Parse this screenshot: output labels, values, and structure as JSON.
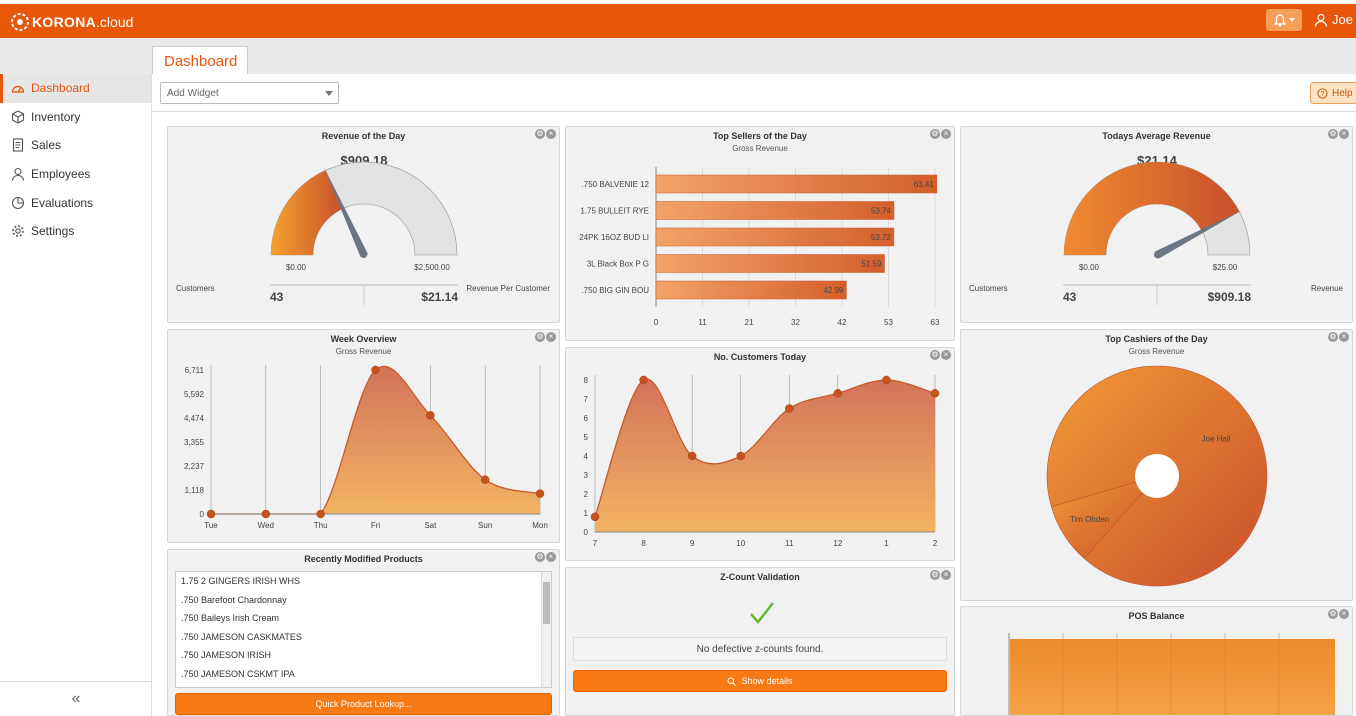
{
  "app": {
    "logo_brand": "KORONA",
    "logo_suffix": ".cloud",
    "user_name": "Joe",
    "accent": "#e8560a"
  },
  "sidebar": {
    "items": [
      {
        "label": "Dashboard",
        "icon": "dashboard-icon"
      },
      {
        "label": "Inventory",
        "icon": "box-icon"
      },
      {
        "label": "Sales",
        "icon": "receipt-icon"
      },
      {
        "label": "Employees",
        "icon": "person-icon"
      },
      {
        "label": "Evaluations",
        "icon": "pie-icon"
      },
      {
        "label": "Settings",
        "icon": "gear-icon"
      }
    ],
    "collapse_icon": "double-chevron-left-icon"
  },
  "tabs": {
    "active": "Dashboard"
  },
  "toolbar": {
    "add_widget_placeholder": "Add Widget",
    "help_label": "Help"
  },
  "widgets": {
    "revenue_day": {
      "title": "Revenue of the Day",
      "value": "$909.18",
      "min_label": "$0.00",
      "max_label": "$2,500.00",
      "left_label": "Customers",
      "right_label": "Revenue Per Customer",
      "left_value": "43",
      "right_value": "$21.14",
      "gauge_value": 909.18,
      "gauge_max": 2500
    },
    "top_sellers": {
      "title": "Top Sellers of the Day",
      "subtitle": "Gross Revenue"
    },
    "avg_revenue": {
      "title": "Todays Average Revenue",
      "value": "$21.14",
      "min_label": "$0.00",
      "max_label": "$25.00",
      "left_label": "Customers",
      "right_label": "Revenue",
      "left_value": "43",
      "right_value": "$909.18",
      "gauge_value": 21.14,
      "gauge_max": 25
    },
    "week_overview": {
      "title": "Week Overview",
      "subtitle": "Gross Revenue"
    },
    "customers_today": {
      "title": "No. Customers Today"
    },
    "top_cashiers": {
      "title": "Top Cashiers of the Day",
      "subtitle": "Gross Revenue"
    },
    "recent_products": {
      "title": "Recently Modified Products",
      "items": [
        "1.75 2 GINGERS IRISH WHS",
        ".750 Barefoot Chardonnay",
        ".750 Baileys Irish Cream",
        ".750 JAMESON CASKMATES",
        ".750 JAMESON IRISH",
        ".750 JAMESON CSKMT IPA"
      ],
      "button_label": "Quick Product Lookup..."
    },
    "zcount": {
      "title": "Z-Count Validation",
      "message": "No defective z-counts found.",
      "button_label": "Show details"
    },
    "pos_balance": {
      "title": "POS Balance"
    }
  },
  "chart_data": [
    {
      "type": "bar",
      "title": "Top Sellers of the Day",
      "subtitle": "Gross Revenue",
      "orientation": "horizontal",
      "categories": [
        ".750 BALVENIE 12",
        "1.75 BULLEIT RYE",
        "24PK 16OZ BUD LI",
        "3L Black Box P G",
        ".750 BIG GIN BOU"
      ],
      "values": [
        63.41,
        53.74,
        53.72,
        51.59,
        42.99
      ],
      "value_labels": [
        "63.41",
        "53.74",
        "53.72",
        "51.59",
        "42.99"
      ],
      "xticks": [
        "0",
        "11",
        "21",
        "32",
        "42",
        "53",
        "63"
      ],
      "xlim": [
        0,
        63
      ]
    },
    {
      "type": "area",
      "title": "Week Overview",
      "subtitle": "Gross Revenue",
      "categories": [
        "Tue",
        "Wed",
        "Thu",
        "Fri",
        "Sat",
        "Sun",
        "Mon"
      ],
      "values": [
        0,
        0,
        0,
        6711,
        4600,
        1600,
        950
      ],
      "yticks": [
        "0",
        "1,118",
        "2,237",
        "3,355",
        "4,474",
        "5,592",
        "6,711"
      ],
      "ylim": [
        0,
        6711
      ]
    },
    {
      "type": "area",
      "title": "No. Customers Today",
      "categories": [
        "7",
        "8",
        "9",
        "10",
        "11",
        "12",
        "1",
        "2"
      ],
      "values": [
        0.8,
        8,
        4,
        4,
        6.5,
        7.3,
        8,
        7.3
      ],
      "yticks": [
        "0",
        "1",
        "2",
        "3",
        "4",
        "5",
        "6",
        "7",
        "8"
      ],
      "ylim": [
        0,
        8
      ]
    },
    {
      "type": "pie",
      "title": "Top Cashiers of the Day",
      "subtitle": "Gross Revenue",
      "labels": [
        "Joe Hall",
        "Tim Ohden"
      ],
      "values": [
        91,
        9
      ],
      "donut": true
    }
  ]
}
